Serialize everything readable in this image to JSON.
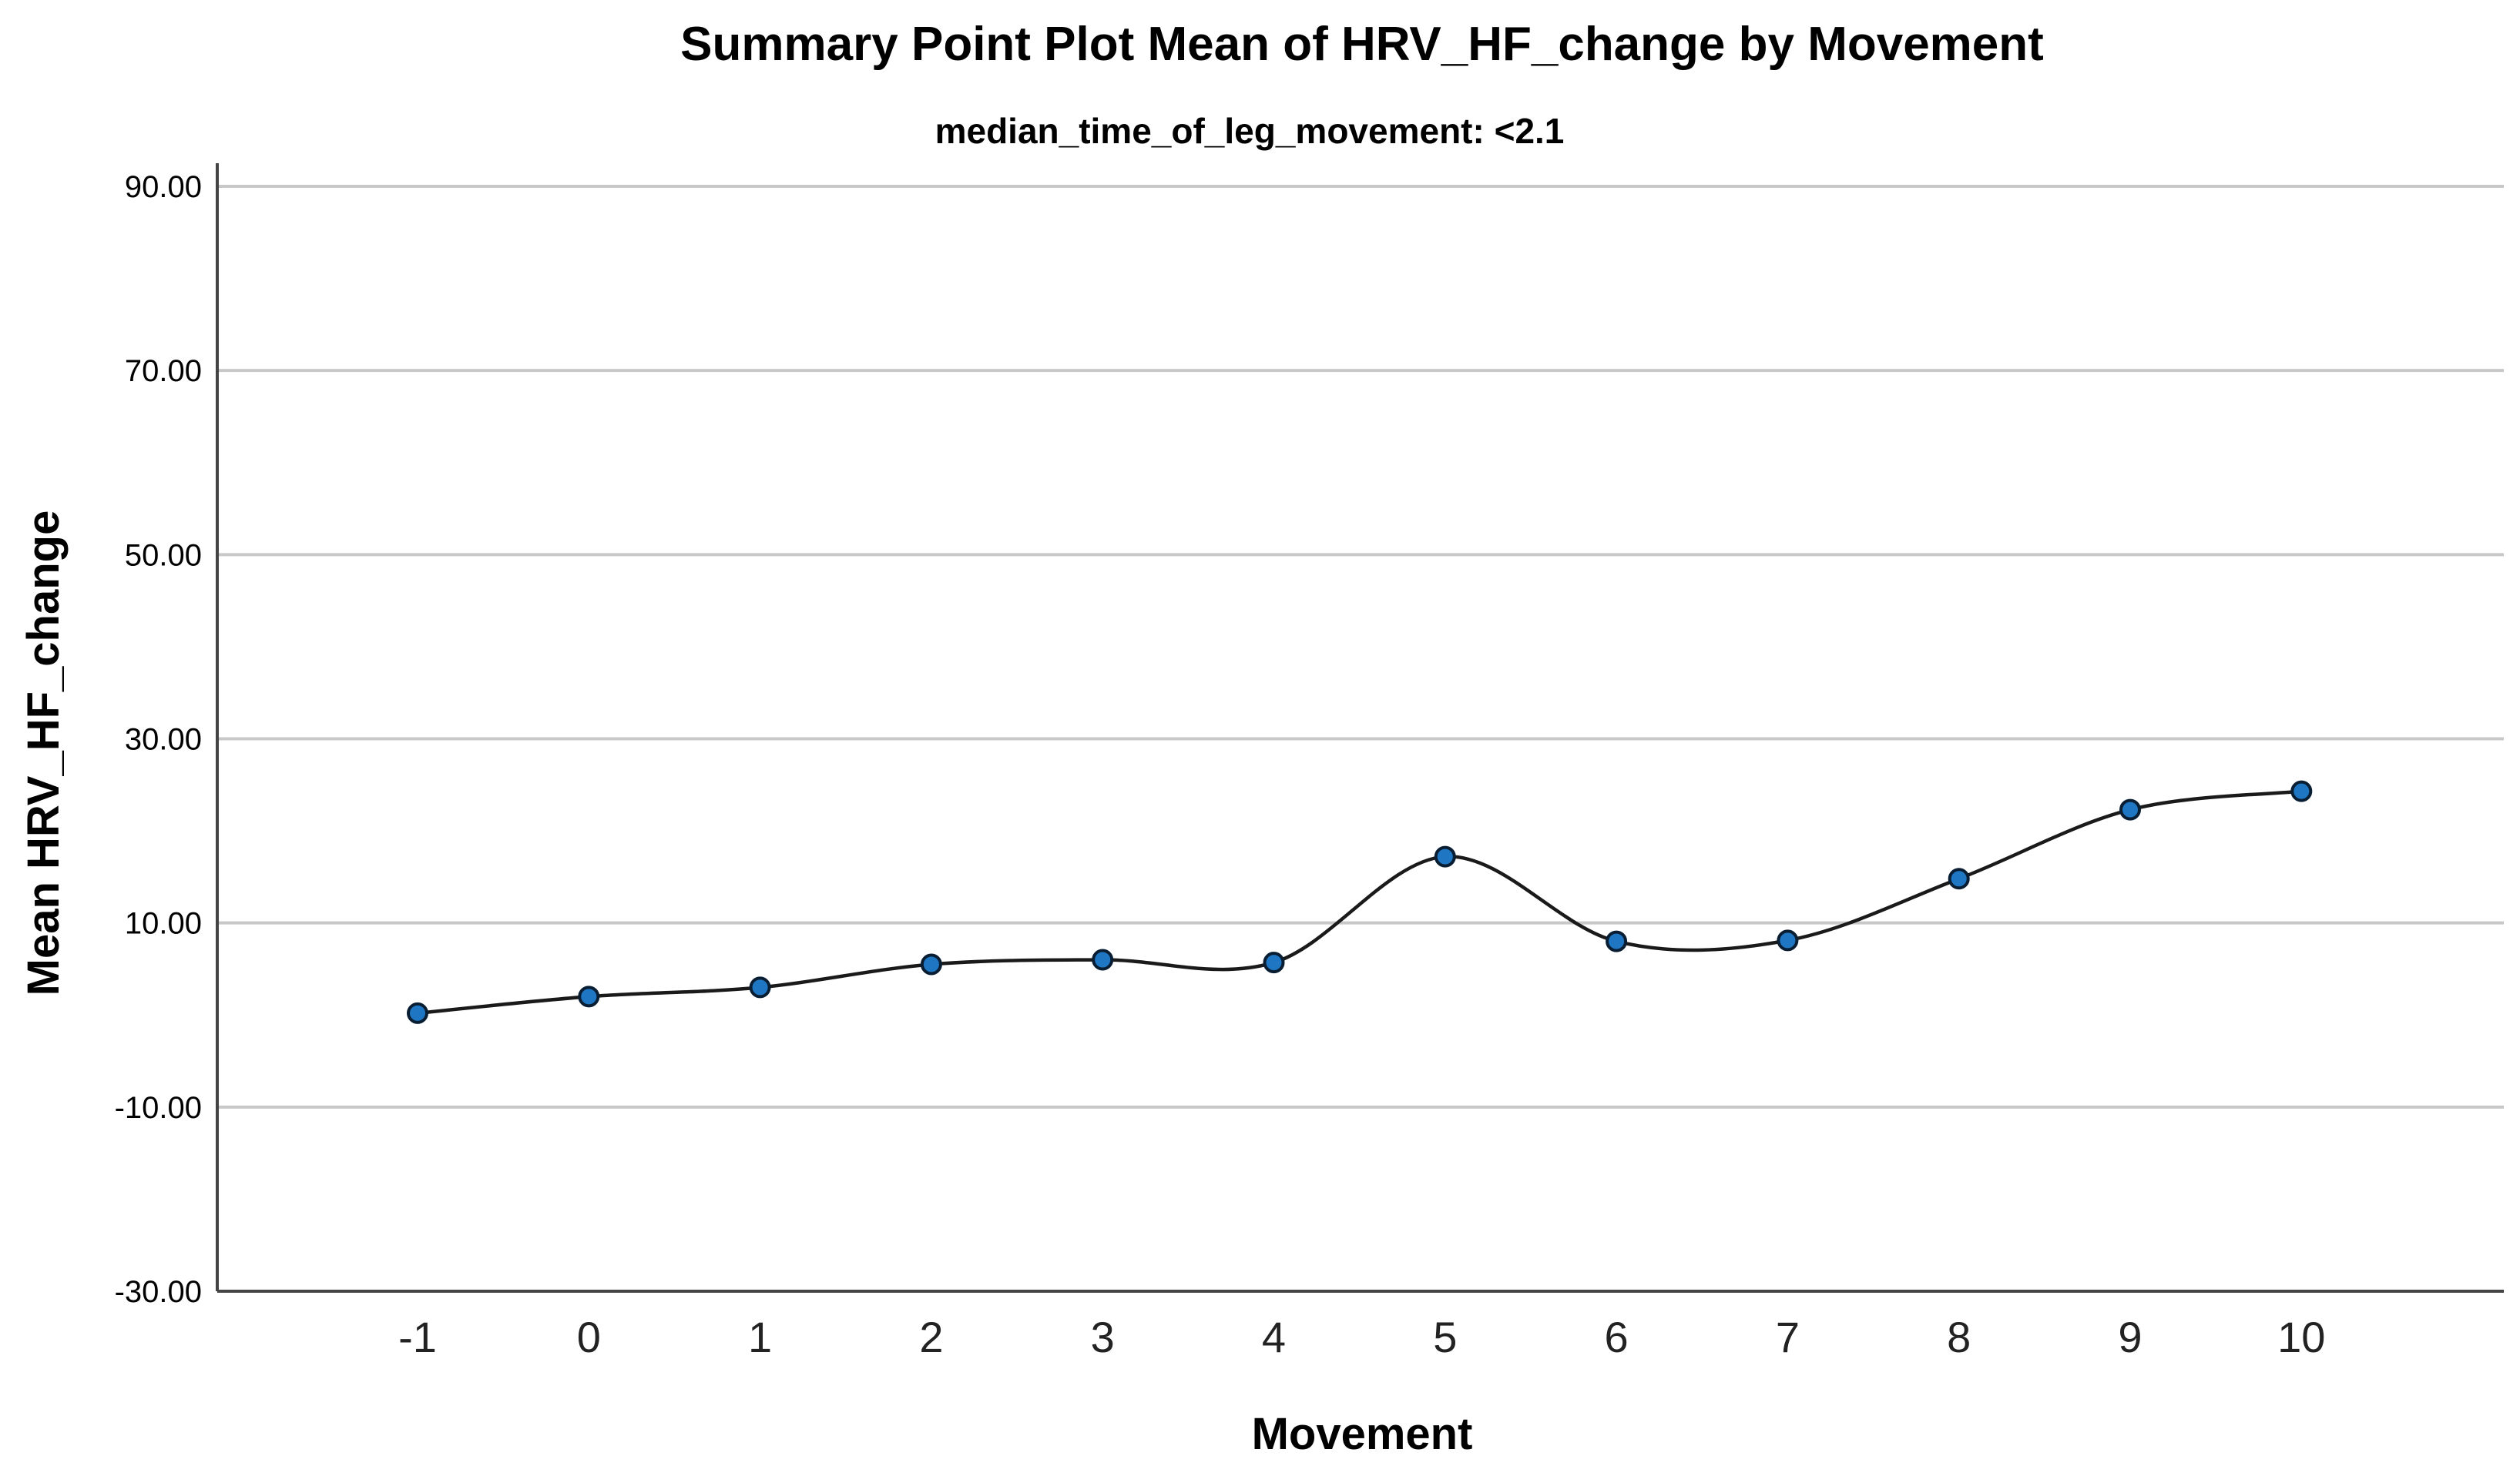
{
  "chart_data": {
    "type": "line",
    "title": "Summary Point Plot Mean of HRV_HF_change by Movement",
    "subtitle": "median_time_of_leg_movement: <2.1",
    "xlabel": "Movement",
    "ylabel": "Mean HRV_HF_change",
    "categories": [
      "-1",
      "0",
      "1",
      "2",
      "3",
      "4",
      "5",
      "6",
      "7",
      "8",
      "9",
      "10"
    ],
    "x": [
      -1,
      0,
      1,
      2,
      3,
      4,
      5,
      6,
      7,
      8,
      9,
      10
    ],
    "series": [
      {
        "values": [
          0.2,
          2.0,
          3.0,
          5.5,
          6.0,
          5.7,
          17.2,
          8.0,
          8.1,
          14.8,
          22.3,
          24.3
        ]
      }
    ],
    "ylim": [
      -30,
      90
    ],
    "yticks": [
      "-30.00",
      "-10.00",
      "10.00",
      "30.00",
      "50.00",
      "70.00",
      "90.00"
    ],
    "ytick_values": [
      -30,
      -10,
      10,
      30,
      50,
      70,
      90
    ],
    "grid": "horizontal",
    "smooth": true,
    "marker_color": "#1f77c4",
    "line_color": "#1a1a1a",
    "grid_color": "#c8c8c8"
  }
}
